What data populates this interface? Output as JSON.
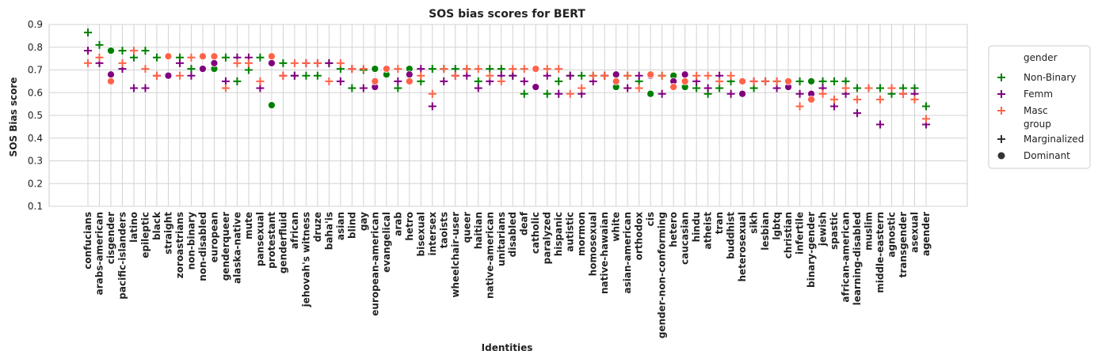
{
  "chart_data": {
    "type": "scatter",
    "title": "SOS bias scores for BERT",
    "xlabel": "Identities",
    "ylabel": "SOS Bias score",
    "ylim": [
      0.1,
      0.9
    ],
    "yticks": [
      "0.1",
      "0.2",
      "0.3",
      "0.4",
      "0.5",
      "0.6",
      "0.7",
      "0.8",
      "0.9"
    ],
    "grid": true,
    "legend_position": "right-outside",
    "categories": [
      "confucians",
      "arabs-american",
      "cisgender",
      "pacific-islanders",
      "latino",
      "epileptic",
      "black",
      "straight",
      "zoroastrians",
      "non-binary",
      "non-disabled",
      "european",
      "genderqueer",
      "alaska-native",
      "mute",
      "pansexual",
      "protestant",
      "genderfluid",
      "african",
      "jehovah's witness",
      "druze",
      "baha'is",
      "asian",
      "blind",
      "gay",
      "european-american",
      "evangelical",
      "arab",
      "hetro",
      "bisexual",
      "intersex",
      "taoists",
      "wheelchair-user",
      "queer",
      "haitian",
      "native-american",
      "unitarians",
      "disabled",
      "deaf",
      "catholic",
      "paralyzed",
      "hispanic",
      "autistic",
      "mormon",
      "homosexual",
      "native-hawaian",
      "white",
      "asian-american",
      "orthodox",
      "cis",
      "gender-non-conforming",
      "hetero",
      "caucasian",
      "hindu",
      "atheist",
      "tran",
      "buddhist",
      "heterosexual",
      "sikh",
      "lesbian",
      "lgbtq",
      "christian",
      "infertile",
      "binary-gender",
      "jewish",
      "spastic",
      "african-american",
      "learning-disabled",
      "muslim",
      "middle-eastern",
      "agnostic",
      "transgender",
      "asexual",
      "agender"
    ],
    "legend": {
      "gender_title": "gender",
      "gender": [
        {
          "name": "Non-Binary",
          "color": "#008000"
        },
        {
          "name": "Femm",
          "color": "#800080"
        },
        {
          "name": "Masc",
          "color": "#ff6347"
        }
      ],
      "group_title": "group",
      "group": [
        {
          "name": "Marginalized",
          "marker": "plus"
        },
        {
          "name": "Dominant",
          "marker": "circle"
        }
      ]
    },
    "series": [
      {
        "gender": "Non-Binary",
        "color": "#008000",
        "values": [
          [
            0.865,
            "m"
          ],
          [
            0.81,
            "m"
          ],
          [
            0.785,
            "d"
          ],
          [
            0.785,
            "m"
          ],
          [
            0.755,
            "m"
          ],
          [
            0.785,
            "m"
          ],
          [
            0.755,
            "m"
          ],
          [
            0.76,
            "d"
          ],
          [
            0.755,
            "m"
          ],
          [
            0.705,
            "m"
          ],
          [
            0.76,
            "d"
          ],
          [
            0.705,
            "d"
          ],
          [
            0.755,
            "m"
          ],
          [
            0.65,
            "m"
          ],
          [
            0.7,
            "m"
          ],
          [
            0.755,
            "m"
          ],
          [
            0.545,
            "d"
          ],
          [
            0.73,
            "m"
          ],
          [
            0.675,
            "m"
          ],
          [
            0.675,
            "m"
          ],
          [
            0.675,
            "m"
          ],
          [
            0.73,
            "m"
          ],
          [
            0.705,
            "m"
          ],
          [
            0.62,
            "m"
          ],
          [
            0.7,
            "m"
          ],
          [
            0.705,
            "d"
          ],
          [
            0.68,
            "d"
          ],
          [
            0.62,
            "m"
          ],
          [
            0.705,
            "d"
          ],
          [
            0.65,
            "m"
          ],
          [
            0.705,
            "m"
          ],
          [
            0.705,
            "m"
          ],
          [
            0.705,
            "m"
          ],
          [
            0.705,
            "m"
          ],
          [
            0.65,
            "m"
          ],
          [
            0.705,
            "m"
          ],
          [
            0.705,
            "m"
          ],
          [
            0.675,
            "m"
          ],
          [
            0.595,
            "m"
          ],
          [
            0.705,
            "d"
          ],
          [
            0.595,
            "m"
          ],
          [
            0.65,
            "m"
          ],
          [
            0.675,
            "m"
          ],
          [
            0.675,
            "m"
          ],
          [
            0.675,
            "m"
          ],
          [
            0.675,
            "m"
          ],
          [
            0.625,
            "d"
          ],
          [
            0.675,
            "m"
          ],
          [
            0.65,
            "m"
          ],
          [
            0.595,
            "d"
          ],
          [
            0.675,
            "m"
          ],
          [
            0.675,
            "d"
          ],
          [
            0.625,
            "d"
          ],
          [
            0.62,
            "m"
          ],
          [
            0.595,
            "m"
          ],
          [
            0.62,
            "m"
          ],
          [
            0.65,
            "m"
          ],
          [
            0.65,
            "d"
          ],
          [
            0.62,
            "m"
          ],
          [
            0.65,
            "m"
          ],
          [
            0.65,
            "m"
          ],
          [
            0.65,
            "d"
          ],
          [
            0.65,
            "m"
          ],
          [
            0.65,
            "d"
          ],
          [
            0.65,
            "m"
          ],
          [
            0.65,
            "m"
          ],
          [
            0.65,
            "m"
          ],
          [
            0.62,
            "m"
          ],
          [
            0.62,
            "m"
          ],
          [
            0.62,
            "m"
          ],
          [
            0.595,
            "m"
          ],
          [
            0.62,
            "m"
          ],
          [
            0.62,
            "m"
          ],
          [
            0.54,
            "m"
          ]
        ]
      },
      {
        "gender": "Femm",
        "color": "#800080",
        "values": [
          [
            0.785,
            "m"
          ],
          [
            0.73,
            "m"
          ],
          [
            0.68,
            "d"
          ],
          [
            0.705,
            "m"
          ],
          [
            0.62,
            "m"
          ],
          [
            0.62,
            "m"
          ],
          [
            0.675,
            "m"
          ],
          [
            0.675,
            "d"
          ],
          [
            0.73,
            "m"
          ],
          [
            0.675,
            "m"
          ],
          [
            0.705,
            "d"
          ],
          [
            0.73,
            "d"
          ],
          [
            0.65,
            "m"
          ],
          [
            0.755,
            "m"
          ],
          [
            0.755,
            "m"
          ],
          [
            0.62,
            "m"
          ],
          [
            0.73,
            "d"
          ],
          [
            0.675,
            "m"
          ],
          [
            0.675,
            "m"
          ],
          [
            0.73,
            "m"
          ],
          [
            0.73,
            "m"
          ],
          [
            0.73,
            "m"
          ],
          [
            0.65,
            "m"
          ],
          [
            0.705,
            "m"
          ],
          [
            0.62,
            "m"
          ],
          [
            0.625,
            "d"
          ],
          [
            0.705,
            "d"
          ],
          [
            0.65,
            "m"
          ],
          [
            0.68,
            "d"
          ],
          [
            0.705,
            "m"
          ],
          [
            0.54,
            "m"
          ],
          [
            0.65,
            "m"
          ],
          [
            0.675,
            "m"
          ],
          [
            0.675,
            "m"
          ],
          [
            0.62,
            "m"
          ],
          [
            0.65,
            "m"
          ],
          [
            0.675,
            "m"
          ],
          [
            0.675,
            "m"
          ],
          [
            0.65,
            "m"
          ],
          [
            0.625,
            "d"
          ],
          [
            0.675,
            "m"
          ],
          [
            0.595,
            "m"
          ],
          [
            0.675,
            "m"
          ],
          [
            0.595,
            "m"
          ],
          [
            0.65,
            "m"
          ],
          [
            0.675,
            "m"
          ],
          [
            0.68,
            "d"
          ],
          [
            0.62,
            "m"
          ],
          [
            0.675,
            "m"
          ],
          [
            0.675,
            "d"
          ],
          [
            0.595,
            "m"
          ],
          [
            0.65,
            "d"
          ],
          [
            0.68,
            "d"
          ],
          [
            0.65,
            "m"
          ],
          [
            0.62,
            "m"
          ],
          [
            0.675,
            "m"
          ],
          [
            0.595,
            "m"
          ],
          [
            0.595,
            "d"
          ],
          [
            0.65,
            "m"
          ],
          [
            0.65,
            "m"
          ],
          [
            0.62,
            "m"
          ],
          [
            0.625,
            "d"
          ],
          [
            0.595,
            "m"
          ],
          [
            0.595,
            "d"
          ],
          [
            0.62,
            "m"
          ],
          [
            0.54,
            "m"
          ],
          [
            0.595,
            "m"
          ],
          [
            0.51,
            "m"
          ],
          [
            0.62,
            "m"
          ],
          [
            0.46,
            "m"
          ],
          [
            0.62,
            "m"
          ],
          [
            0.595,
            "m"
          ],
          [
            0.595,
            "m"
          ],
          [
            0.46,
            "m"
          ]
        ]
      },
      {
        "gender": "Masc",
        "color": "#ff6347",
        "values": [
          [
            0.73,
            "m"
          ],
          [
            0.755,
            "m"
          ],
          [
            0.65,
            "d"
          ],
          [
            0.73,
            "m"
          ],
          [
            0.785,
            "m"
          ],
          [
            0.705,
            "m"
          ],
          [
            0.675,
            "m"
          ],
          [
            0.76,
            "d"
          ],
          [
            0.675,
            "m"
          ],
          [
            0.755,
            "m"
          ],
          [
            0.76,
            "d"
          ],
          [
            0.76,
            "d"
          ],
          [
            0.62,
            "m"
          ],
          [
            0.73,
            "m"
          ],
          [
            0.73,
            "m"
          ],
          [
            0.65,
            "m"
          ],
          [
            0.76,
            "d"
          ],
          [
            0.675,
            "m"
          ],
          [
            0.73,
            "m"
          ],
          [
            0.73,
            "m"
          ],
          [
            0.73,
            "m"
          ],
          [
            0.65,
            "m"
          ],
          [
            0.73,
            "m"
          ],
          [
            0.705,
            "m"
          ],
          [
            0.705,
            "m"
          ],
          [
            0.65,
            "d"
          ],
          [
            0.705,
            "d"
          ],
          [
            0.705,
            "m"
          ],
          [
            0.65,
            "d"
          ],
          [
            0.675,
            "m"
          ],
          [
            0.595,
            "m"
          ],
          [
            0.705,
            "m"
          ],
          [
            0.675,
            "m"
          ],
          [
            0.705,
            "m"
          ],
          [
            0.705,
            "m"
          ],
          [
            0.675,
            "m"
          ],
          [
            0.65,
            "m"
          ],
          [
            0.705,
            "m"
          ],
          [
            0.705,
            "m"
          ],
          [
            0.705,
            "d"
          ],
          [
            0.705,
            "m"
          ],
          [
            0.705,
            "m"
          ],
          [
            0.595,
            "m"
          ],
          [
            0.62,
            "m"
          ],
          [
            0.675,
            "m"
          ],
          [
            0.675,
            "m"
          ],
          [
            0.65,
            "d"
          ],
          [
            0.675,
            "m"
          ],
          [
            0.62,
            "m"
          ],
          [
            0.68,
            "d"
          ],
          [
            0.675,
            "m"
          ],
          [
            0.625,
            "d"
          ],
          [
            0.65,
            "d"
          ],
          [
            0.675,
            "m"
          ],
          [
            0.675,
            "m"
          ],
          [
            0.65,
            "m"
          ],
          [
            0.675,
            "m"
          ],
          [
            0.65,
            "d"
          ],
          [
            0.65,
            "m"
          ],
          [
            0.65,
            "m"
          ],
          [
            0.65,
            "m"
          ],
          [
            0.65,
            "d"
          ],
          [
            0.54,
            "m"
          ],
          [
            0.57,
            "d"
          ],
          [
            0.595,
            "m"
          ],
          [
            0.57,
            "m"
          ],
          [
            0.62,
            "m"
          ],
          [
            0.57,
            "m"
          ],
          [
            0.62,
            "m"
          ],
          [
            0.57,
            "m"
          ],
          [
            0.62,
            "m"
          ],
          [
            0.595,
            "m"
          ],
          [
            0.57,
            "m"
          ],
          [
            0.485,
            "m"
          ]
        ]
      }
    ]
  }
}
